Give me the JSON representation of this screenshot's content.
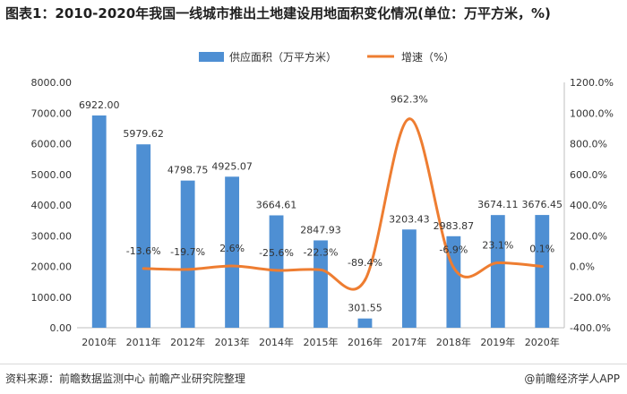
{
  "title": "图表1：2010-2020年我国一线城市推出土地建设用地面积变化情况(单位：万平方米，%)",
  "footer": {
    "source": "资料来源：前瞻数据监测中心 前瞻产业研究院整理",
    "brand": "@前瞻经济学人APP"
  },
  "colors": {
    "bar": "#4e8fd3",
    "line": "#ee7d31",
    "axis": "#bfbfbf",
    "text": "#333333"
  },
  "chart_data": {
    "type": "bar",
    "categories": [
      "2010年",
      "2011年",
      "2012年",
      "2013年",
      "2014年",
      "2015年",
      "2016年",
      "2017年",
      "2018年",
      "2019年",
      "2020年"
    ],
    "series": [
      {
        "name": "供应面积（万平方米）",
        "type": "bar",
        "axis": "left",
        "values": [
          6922.0,
          5979.62,
          4798.75,
          4925.07,
          3664.61,
          2847.93,
          301.55,
          3203.43,
          2983.87,
          3674.11,
          3676.45
        ],
        "labels": [
          "6922.00",
          "5979.62",
          "4798.75",
          "4925.07",
          "3664.61",
          "2847.93",
          "301.55",
          "3203.43",
          "2983.87",
          "3674.11",
          "3676.45"
        ]
      },
      {
        "name": "增速（%）",
        "type": "line",
        "axis": "right",
        "values": [
          null,
          -13.6,
          -19.7,
          2.6,
          -25.6,
          -22.3,
          -89.4,
          962.3,
          -6.9,
          23.1,
          0.1
        ],
        "labels": [
          "",
          "-13.6%",
          "-19.7%",
          "2.6%",
          "-25.6%",
          "-22.3%",
          "-89.4%",
          "962.3%",
          "-6.9%",
          "23.1%",
          "0.1%"
        ]
      }
    ],
    "ylim_left": [
      0,
      8000
    ],
    "yticks_left": [
      "0.00",
      "1000.00",
      "2000.00",
      "3000.00",
      "4000.00",
      "5000.00",
      "6000.00",
      "7000.00",
      "8000.00"
    ],
    "ylim_right": [
      -400,
      1200
    ],
    "yticks_right": [
      "-400.0%",
      "-200.0%",
      "0.0%",
      "200.0%",
      "400.0%",
      "600.0%",
      "800.0%",
      "1000.0%",
      "1200.0%"
    ],
    "legend_position": "top-center",
    "grid": false
  }
}
